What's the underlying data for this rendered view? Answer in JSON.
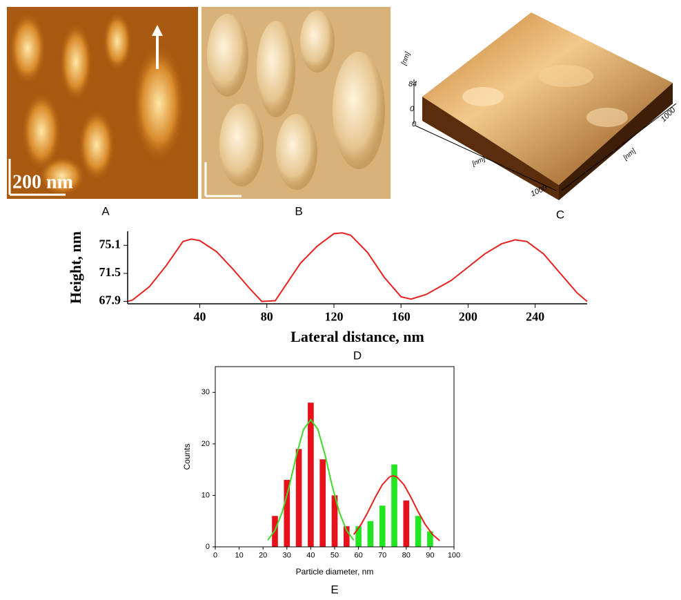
{
  "images": [
    {
      "label": "A",
      "scale_bar": "200 nm"
    },
    {
      "label": "B"
    },
    {
      "label": "C",
      "z_unit": "[nm]",
      "z_max": "84",
      "z_min": "0",
      "x_min": "0",
      "x_unit": "[nm]",
      "x_max": "1000",
      "y_unit": "[nm]",
      "y_max": "1000"
    }
  ],
  "chart_data": [
    {
      "type": "line",
      "panel_label": "D",
      "xlabel": "Lateral distance, nm",
      "ylabel": "Height, nm",
      "color": "#e8201e",
      "x": [
        -3,
        0,
        10,
        20,
        30,
        35,
        40,
        50,
        60,
        70,
        77,
        85,
        90,
        100,
        110,
        120,
        125,
        130,
        140,
        150,
        160,
        166,
        175,
        190,
        200,
        210,
        220,
        228,
        235,
        245,
        255,
        265,
        271
      ],
      "values": [
        67.9,
        68.1,
        69.8,
        72.5,
        75.6,
        75.9,
        75.7,
        74.3,
        72.0,
        69.5,
        67.9,
        68.0,
        69.6,
        72.8,
        75.0,
        76.6,
        76.7,
        76.4,
        74.2,
        71.0,
        68.5,
        68.2,
        68.8,
        70.6,
        72.3,
        74.0,
        75.3,
        75.8,
        75.6,
        74.0,
        71.5,
        69.0,
        67.9
      ],
      "xlim": [
        -3,
        271
      ],
      "xticks": [
        40,
        80,
        120,
        160,
        200,
        240
      ],
      "ylim": [
        67.6,
        76.9
      ],
      "yticks": [
        67.9,
        71.5,
        75.1
      ]
    },
    {
      "type": "bar",
      "panel_label": "E",
      "xlabel": "Particle diameter, nm",
      "ylabel": "Counts",
      "x": [
        25,
        30,
        35,
        40,
        45,
        50,
        55,
        60,
        65,
        70,
        75,
        80,
        85,
        90
      ],
      "values": [
        6,
        13,
        19,
        28,
        17,
        10,
        4,
        4,
        5,
        8,
        16,
        9,
        6,
        3
      ],
      "colors": [
        "#e8101a",
        "#e8101a",
        "#e8101a",
        "#e8101a",
        "#e8101a",
        "#e8101a",
        "#e8101a",
        "#22e622",
        "#22e622",
        "#22e622",
        "#22e622",
        "#e8101a",
        "#22e622",
        "#22e622"
      ],
      "series": [
        {
          "color": "#3cdc28",
          "x": [
            22,
            25,
            28,
            31,
            34,
            37,
            40,
            43,
            46,
            49,
            52,
            55,
            58
          ],
          "values": [
            1.3,
            3.2,
            6.7,
            11.8,
            17.8,
            22.8,
            24.7,
            22.8,
            17.8,
            11.8,
            6.7,
            3.2,
            1.3
          ]
        },
        {
          "color": "#e8201e",
          "x": [
            58,
            61,
            64,
            67,
            70,
            73,
            74.5,
            76,
            79,
            82,
            85,
            88,
            91,
            94
          ],
          "values": [
            2.4,
            4.3,
            6.8,
            9.6,
            12.1,
            13.6,
            13.8,
            13.6,
            12.1,
            9.6,
            6.8,
            4.3,
            2.4,
            1.2
          ]
        }
      ],
      "xlim": [
        0,
        100
      ],
      "xticks": [
        0,
        10,
        20,
        30,
        40,
        50,
        60,
        70,
        80,
        90,
        100
      ],
      "ylim": [
        0,
        35
      ],
      "yticks": [
        0,
        10,
        20,
        30
      ]
    }
  ]
}
